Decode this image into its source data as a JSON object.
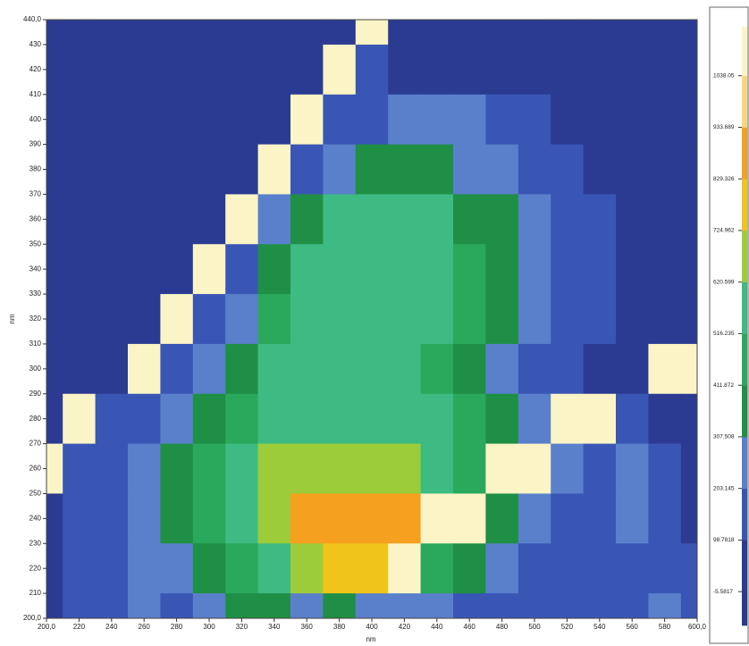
{
  "chart_data": {
    "type": "heatmap",
    "xlabel": "nm",
    "ylabel": "nm",
    "x": [
      200,
      220,
      240,
      260,
      280,
      300,
      320,
      340,
      360,
      380,
      400,
      420,
      440,
      460,
      480,
      500,
      520,
      540,
      560,
      580,
      600
    ],
    "y": [
      440,
      420,
      400,
      380,
      360,
      340,
      320,
      300,
      280,
      260,
      240,
      220,
      200
    ],
    "z": [
      [
        40,
        40,
        40,
        40,
        40,
        40,
        40,
        40,
        40,
        40,
        1080,
        40,
        40,
        40,
        40,
        40,
        40,
        40,
        40,
        40,
        40
      ],
      [
        40,
        40,
        40,
        40,
        40,
        40,
        40,
        40,
        40,
        1080,
        150,
        40,
        40,
        40,
        40,
        40,
        40,
        40,
        40,
        40,
        40
      ],
      [
        40,
        40,
        40,
        40,
        40,
        40,
        40,
        40,
        1080,
        150,
        150,
        250,
        250,
        250,
        150,
        150,
        40,
        40,
        40,
        40,
        40
      ],
      [
        40,
        40,
        40,
        40,
        40,
        40,
        40,
        1080,
        150,
        250,
        360,
        360,
        360,
        250,
        250,
        150,
        150,
        40,
        40,
        40,
        40
      ],
      [
        40,
        40,
        40,
        40,
        40,
        40,
        1080,
        250,
        360,
        570,
        570,
        570,
        570,
        360,
        360,
        250,
        150,
        150,
        40,
        40,
        40
      ],
      [
        40,
        40,
        40,
        40,
        40,
        1080,
        150,
        360,
        570,
        570,
        570,
        570,
        570,
        460,
        360,
        250,
        150,
        150,
        40,
        40,
        40
      ],
      [
        40,
        40,
        40,
        40,
        1080,
        150,
        250,
        460,
        570,
        570,
        570,
        570,
        570,
        460,
        360,
        250,
        150,
        150,
        40,
        40,
        40
      ],
      [
        40,
        40,
        40,
        1080,
        150,
        250,
        360,
        570,
        570,
        570,
        570,
        570,
        460,
        360,
        250,
        150,
        150,
        40,
        40,
        1080,
        1080
      ],
      [
        40,
        1080,
        150,
        150,
        250,
        360,
        460,
        570,
        570,
        570,
        570,
        570,
        570,
        460,
        360,
        250,
        1080,
        1080,
        150,
        40,
        40
      ],
      [
        1080,
        150,
        150,
        250,
        360,
        460,
        570,
        670,
        670,
        670,
        670,
        670,
        570,
        460,
        1080,
        1080,
        250,
        150,
        250,
        150,
        40
      ],
      [
        40,
        150,
        150,
        250,
        360,
        460,
        570,
        670,
        880,
        880,
        880,
        880,
        1080,
        1080,
        360,
        250,
        150,
        150,
        250,
        150,
        40
      ],
      [
        40,
        150,
        150,
        250,
        250,
        360,
        460,
        570,
        670,
        780,
        780,
        1080,
        460,
        360,
        250,
        150,
        150,
        150,
        150,
        150,
        150
      ],
      [
        40,
        150,
        150,
        250,
        150,
        250,
        360,
        360,
        250,
        360,
        250,
        250,
        250,
        150,
        150,
        150,
        150,
        150,
        150,
        250,
        150
      ]
    ],
    "xlim": [
      200,
      600
    ],
    "ylim": [
      200,
      440
    ],
    "xticks": [
      {
        "value": 200,
        "label": "200,0"
      },
      220,
      240,
      260,
      280,
      300,
      320,
      340,
      360,
      380,
      400,
      420,
      440,
      460,
      480,
      500,
      520,
      540,
      560,
      580,
      {
        "value": 600,
        "label": "600,0"
      }
    ],
    "yticks": [
      {
        "value": 200,
        "label": "200,0"
      },
      210,
      220,
      230,
      240,
      250,
      260,
      270,
      280,
      290,
      300,
      310,
      320,
      330,
      340,
      350,
      360,
      370,
      380,
      390,
      400,
      410,
      420,
      430,
      {
        "value": 440,
        "label": "440,0"
      }
    ],
    "zlim": [
      -74,
      1137
    ],
    "zticks": [
      -5.5817,
      98.7818,
      203.145,
      307.508,
      411.872,
      516.235,
      620.599,
      724.962,
      829.326,
      933.689,
      1038.05
    ],
    "colors": [
      "#2a3a8f",
      "#2b3b92",
      "#3a56b4",
      "#5a80cc",
      "#1f8f45",
      "#2aa85c",
      "#3dbb82",
      "#9ccc3a",
      "#f0c419",
      "#f5a01e",
      "#f7d77a",
      "#fbf4c6"
    ]
  }
}
